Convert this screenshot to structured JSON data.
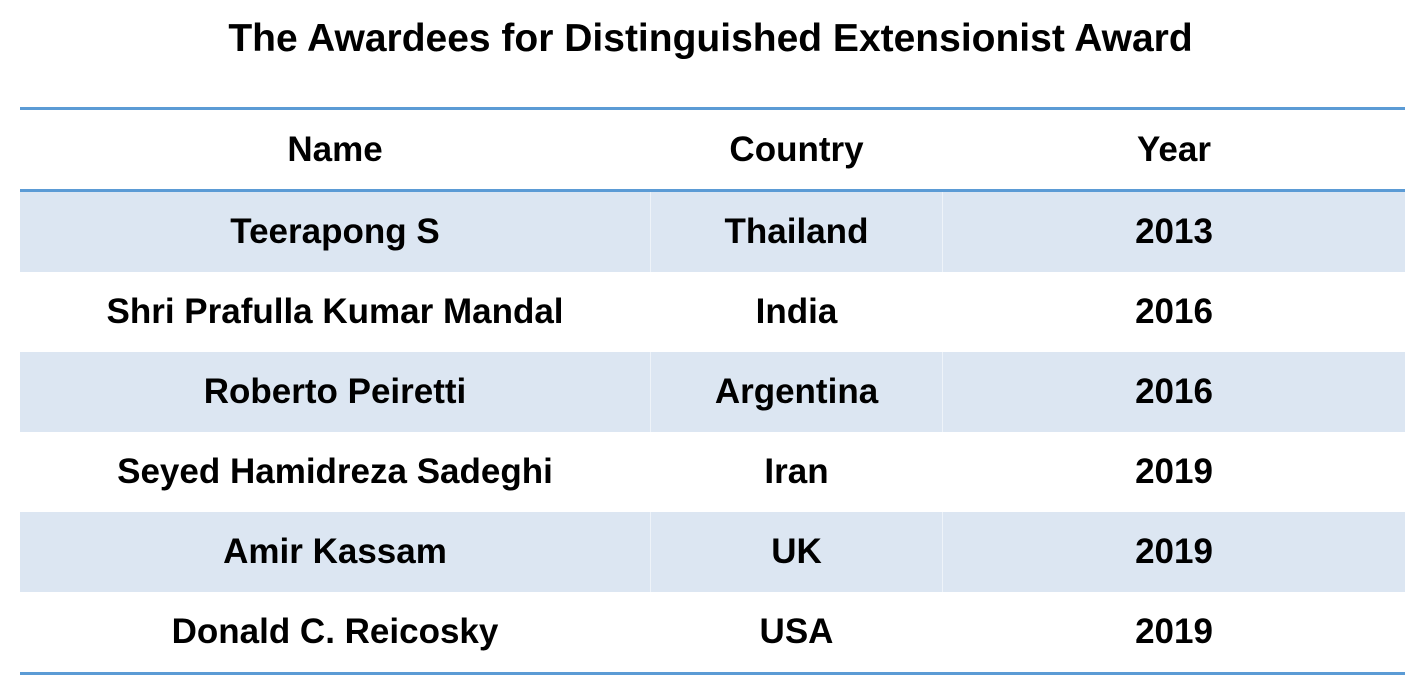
{
  "header": {
    "title": "The Awardees for Distinguished Extensionist Award"
  },
  "table": {
    "columns": [
      "Name",
      "Country",
      "Year"
    ],
    "rows": [
      [
        "Teerapong S",
        "Thailand",
        2013
      ],
      [
        "Shri Prafulla Kumar Mandal",
        "India",
        2016
      ],
      [
        "Roberto Peiretti",
        "Argentina",
        2016
      ],
      [
        "Seyed Hamidreza Sadeghi",
        "Iran",
        2019
      ],
      [
        "Amir Kassam",
        "UK",
        2019
      ],
      [
        "Donald C. Reicosky",
        "USA",
        2019
      ]
    ]
  }
}
